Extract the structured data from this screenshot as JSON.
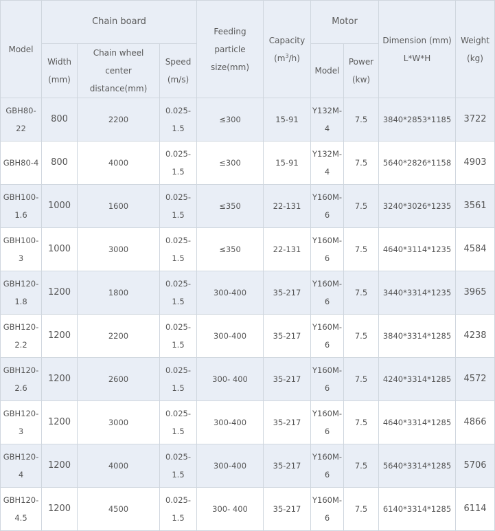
{
  "header": {
    "model": "Model",
    "chain_board": "Chain board",
    "feeding_particle": "Feeding particle",
    "feeding_particle_unit": "size(mm)",
    "capacity": "Capacity",
    "capacity_unit_pre": "(m",
    "capacity_unit_sup": "3",
    "capacity_unit_post": "/h)",
    "motor": "Motor",
    "dimension": "Dimension (mm)",
    "dimension_unit": "L*W*H",
    "weight": "Weight",
    "weight_unit": "(kg)",
    "width": "Width",
    "width_unit": "(mm)",
    "chain_wheel": "Chain wheel center",
    "chain_wheel_unit": "distance(mm)",
    "speed": "Speed",
    "speed_unit": "(m/s)",
    "motor_model": "Model",
    "power": "Power",
    "power_unit": "(kw)"
  },
  "rows": [
    {
      "model_a": "GBH80-22",
      "model_b": "",
      "width": "800",
      "center": "2200",
      "speed": "0.025-1.5",
      "particle": "≤300",
      "capacity": "15-91",
      "motor_a": "Y132M-",
      "motor_b": "4",
      "power": "7.5",
      "dimension": "3840*2853*1185",
      "weight": "3722"
    },
    {
      "model_a": "GBH80-4",
      "model_b": "",
      "width": "800",
      "center": "4000",
      "speed": "0.025-1.5",
      "particle": "≤300",
      "capacity": "15-91",
      "motor_a": "Y132M-",
      "motor_b": "4",
      "power": "7.5",
      "dimension": "5640*2826*1158",
      "weight": "4903"
    },
    {
      "model_a": "GBH100-",
      "model_b": "1.6",
      "width": "1000",
      "center": "1600",
      "speed": "0.025-1.5",
      "particle": "≤350",
      "capacity": "22-131",
      "motor_a": "Y160M-",
      "motor_b": "6",
      "power": "7.5",
      "dimension": "3240*3026*1235",
      "weight": "3561"
    },
    {
      "model_a": "GBH100-3",
      "model_b": "",
      "width": "1000",
      "center": "3000",
      "speed": "0.025-1.5",
      "particle": "≤350",
      "capacity": "22-131",
      "motor_a": "Y160M-",
      "motor_b": "6",
      "power": "7.5",
      "dimension": "4640*3114*1235",
      "weight": "4584"
    },
    {
      "model_a": "GBH120-",
      "model_b": "1.8",
      "width": "1200",
      "center": "1800",
      "speed": "0.025-1.5",
      "particle": "300-400",
      "capacity": "35-217",
      "motor_a": "Y160M-",
      "motor_b": "6",
      "power": "7.5",
      "dimension": "3440*3314*1235",
      "weight": "3965"
    },
    {
      "model_a": "GBH120-",
      "model_b": "2.2",
      "width": "1200",
      "center": "2200",
      "speed": "0.025-1.5",
      "particle": "300-400",
      "capacity": "35-217",
      "motor_a": "Y160M-",
      "motor_b": "6",
      "power": "7.5",
      "dimension": "3840*3314*1285",
      "weight": "4238"
    },
    {
      "model_a": "GBH120-",
      "model_b": "2.6",
      "width": "1200",
      "center": "2600",
      "speed": "0.025-1.5",
      "particle": "300- 400",
      "capacity": "35-217",
      "motor_a": "Y160M-",
      "motor_b": "6",
      "power": "7.5",
      "dimension": "4240*3314*1285",
      "weight": "4572"
    },
    {
      "model_a": "GBH120-3",
      "model_b": "",
      "width": "1200",
      "center": "3000",
      "speed": "0.025-1.5",
      "particle": "300-400",
      "capacity": "35-217",
      "motor_a": "Y160M-",
      "motor_b": "6",
      "power": "7.5",
      "dimension": "4640*3314*1285",
      "weight": "4866"
    },
    {
      "model_a": "GBH120-4",
      "model_b": "",
      "width": "1200",
      "center": "4000",
      "speed": "0.025-1.5",
      "particle": "300-400",
      "capacity": "35-217",
      "motor_a": "Y160M-",
      "motor_b": "6",
      "power": "7.5",
      "dimension": "5640*3314*1285",
      "weight": "5706"
    },
    {
      "model_a": "GBH120-",
      "model_b": "4.5",
      "width": "1200",
      "center": "4500",
      "speed": "0.025-1.5",
      "particle": "300- 400",
      "capacity": "35-217",
      "motor_a": "Y160M-",
      "motor_b": "6",
      "power": "7.5",
      "dimension": "6140*3314*1285",
      "weight": "6114"
    }
  ]
}
